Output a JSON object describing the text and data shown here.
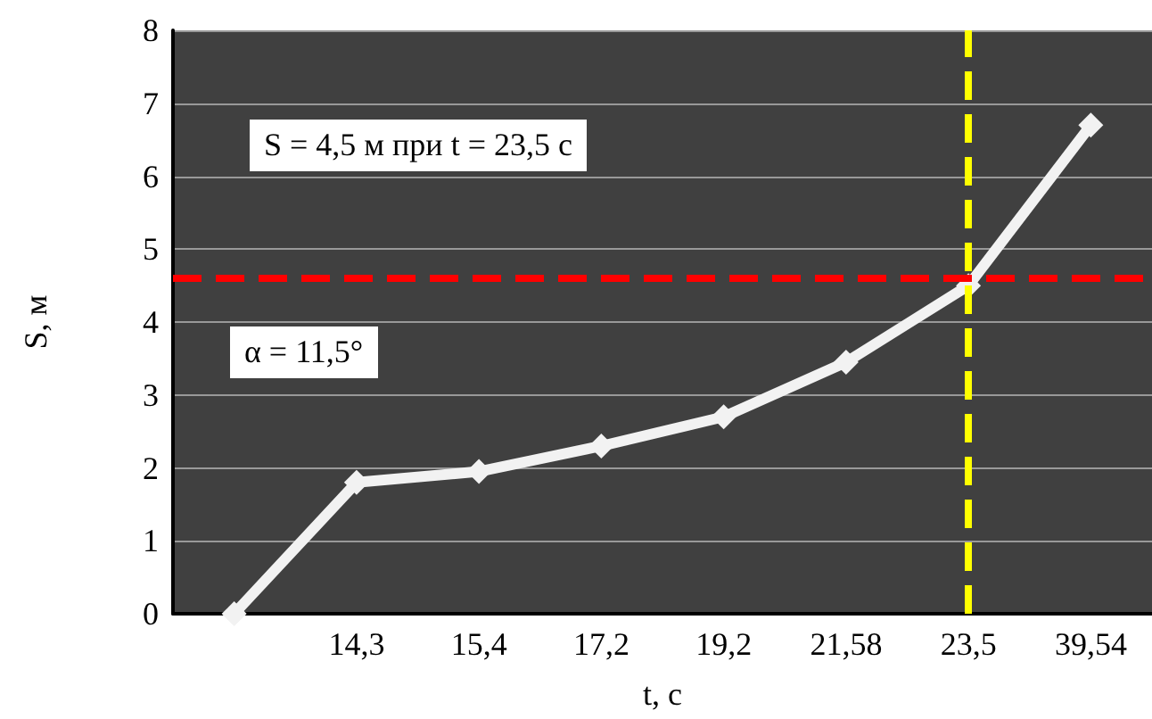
{
  "chart_data": {
    "type": "line",
    "xlabel": "t, с",
    "ylabel": "S, м",
    "categories": [
      null,
      "14,3",
      "15,4",
      "17,2",
      "19,2",
      "21,58",
      "23,5",
      "39,54"
    ],
    "series": [
      {
        "color": "#f2f2f2",
        "values": [
          0,
          1.8,
          1.95,
          2.3,
          2.7,
          3.45,
          4.5,
          6.7
        ]
      }
    ],
    "ylim": [
      0,
      8
    ],
    "yticks": [
      0,
      1,
      2,
      3,
      4,
      5,
      6,
      7,
      8
    ],
    "grid": "y",
    "marker": "diamond",
    "line_style": "solid",
    "ref_lines": [
      {
        "axis": "y",
        "value": 4.6,
        "color": "#ff0000",
        "line_style": "dashed"
      },
      {
        "axis": "x",
        "value": "23,5",
        "color": "#ffff00",
        "line_style": "dashed"
      }
    ],
    "annotations": [
      "S = 4,5 м при t = 23,5 с",
      "α = 11,5°"
    ]
  }
}
